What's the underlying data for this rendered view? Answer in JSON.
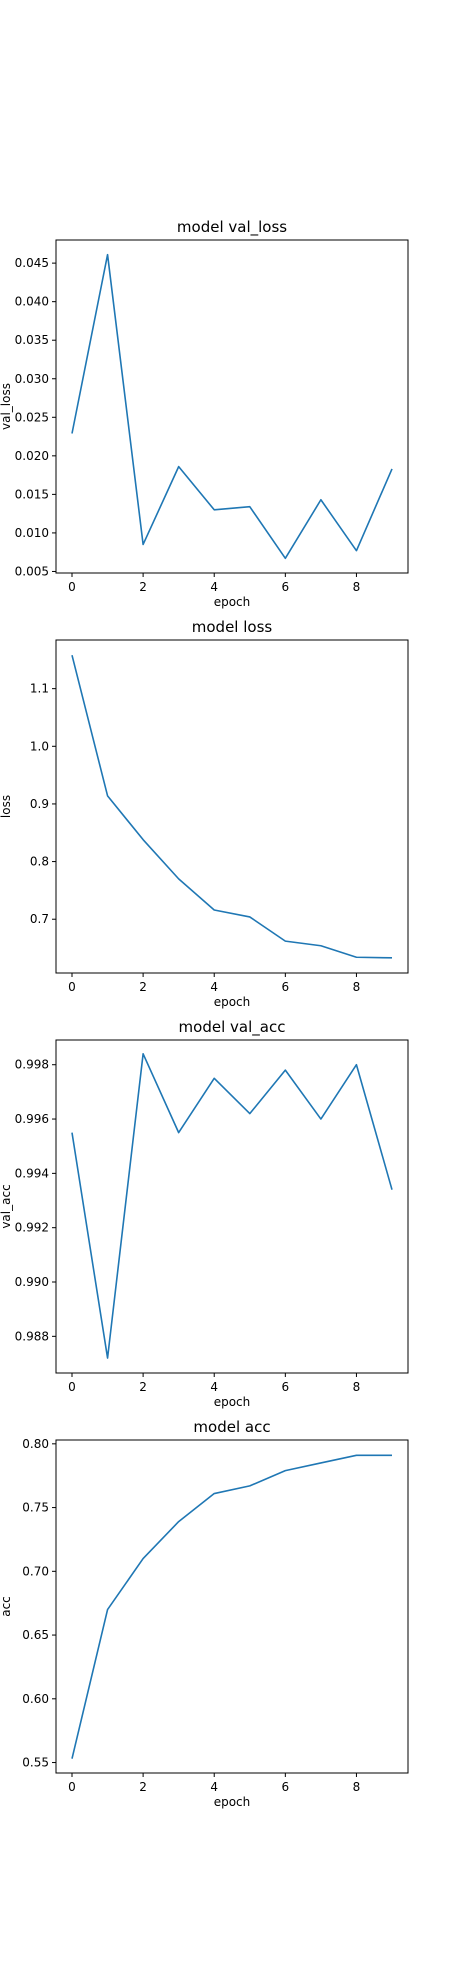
{
  "chart_data": [
    {
      "type": "line",
      "title": "model val_loss",
      "xlabel": "epoch",
      "ylabel": "val_loss",
      "x": [
        0,
        1,
        2,
        3,
        4,
        5,
        6,
        7,
        8,
        9
      ],
      "series": [
        {
          "values": [
            0.0229,
            0.0461,
            0.0085,
            0.0186,
            0.013,
            0.0134,
            0.0067,
            0.0143,
            0.0077,
            0.0183
          ]
        }
      ],
      "xlim": [
        -0.45,
        9.45
      ],
      "ylim": [
        0.0048,
        0.048
      ],
      "xticks": [
        0,
        2,
        4,
        6,
        8
      ],
      "yticks": [
        0.005,
        0.01,
        0.015,
        0.02,
        0.025,
        0.03,
        0.035,
        0.04,
        0.045
      ],
      "ytick_labels": [
        "0.005",
        "0.010",
        "0.015",
        "0.020",
        "0.025",
        "0.030",
        "0.035",
        "0.040",
        "0.045"
      ],
      "color": "#1f77b4",
      "grid": false
    },
    {
      "type": "line",
      "title": "model loss",
      "xlabel": "epoch",
      "ylabel": "loss",
      "x": [
        0,
        1,
        2,
        3,
        4,
        5,
        6,
        7,
        8,
        9
      ],
      "series": [
        {
          "values": [
            1.158,
            0.914,
            0.838,
            0.77,
            0.716,
            0.704,
            0.662,
            0.654,
            0.634,
            0.633
          ]
        }
      ],
      "xlim": [
        -0.45,
        9.45
      ],
      "ylim": [
        0.6067,
        1.1844
      ],
      "xticks": [
        0,
        2,
        4,
        6,
        8
      ],
      "yticks": [
        0.7,
        0.8,
        0.9,
        1.0,
        1.1
      ],
      "ytick_labels": [
        "0.7",
        "0.8",
        "0.9",
        "1.0",
        "1.1"
      ],
      "color": "#1f77b4",
      "grid": false
    },
    {
      "type": "line",
      "title": "model val_acc",
      "xlabel": "epoch",
      "ylabel": "val_acc",
      "x": [
        0,
        1,
        2,
        3,
        4,
        5,
        6,
        7,
        8,
        9
      ],
      "series": [
        {
          "values": [
            0.9955,
            0.9872,
            0.9984,
            0.9955,
            0.9975,
            0.9962,
            0.9978,
            0.996,
            0.998,
            0.9934
          ]
        }
      ],
      "xlim": [
        -0.45,
        9.45
      ],
      "ylim": [
        0.98665,
        0.99891
      ],
      "xticks": [
        0,
        2,
        4,
        6,
        8
      ],
      "yticks": [
        0.988,
        0.99,
        0.992,
        0.994,
        0.996,
        0.998
      ],
      "ytick_labels": [
        "0.988",
        "0.990",
        "0.992",
        "0.994",
        "0.996",
        "0.998"
      ],
      "color": "#1f77b4",
      "grid": false
    },
    {
      "type": "line",
      "title": "model acc",
      "xlabel": "epoch",
      "ylabel": "acc",
      "x": [
        0,
        1,
        2,
        3,
        4,
        5,
        6,
        7,
        8,
        9
      ],
      "series": [
        {
          "values": [
            0.553,
            0.67,
            0.71,
            0.739,
            0.761,
            0.767,
            0.779,
            0.785,
            0.791,
            0.791
          ]
        }
      ],
      "xlim": [
        -0.45,
        9.45
      ],
      "ylim": [
        0.5418,
        0.803
      ],
      "xticks": [
        0,
        2,
        4,
        6,
        8
      ],
      "yticks": [
        0.55,
        0.6,
        0.65,
        0.7,
        0.75,
        0.8
      ],
      "ytick_labels": [
        "0.55",
        "0.60",
        "0.65",
        "0.70",
        "0.75",
        "0.80"
      ],
      "color": "#1f77b4",
      "grid": false
    }
  ]
}
